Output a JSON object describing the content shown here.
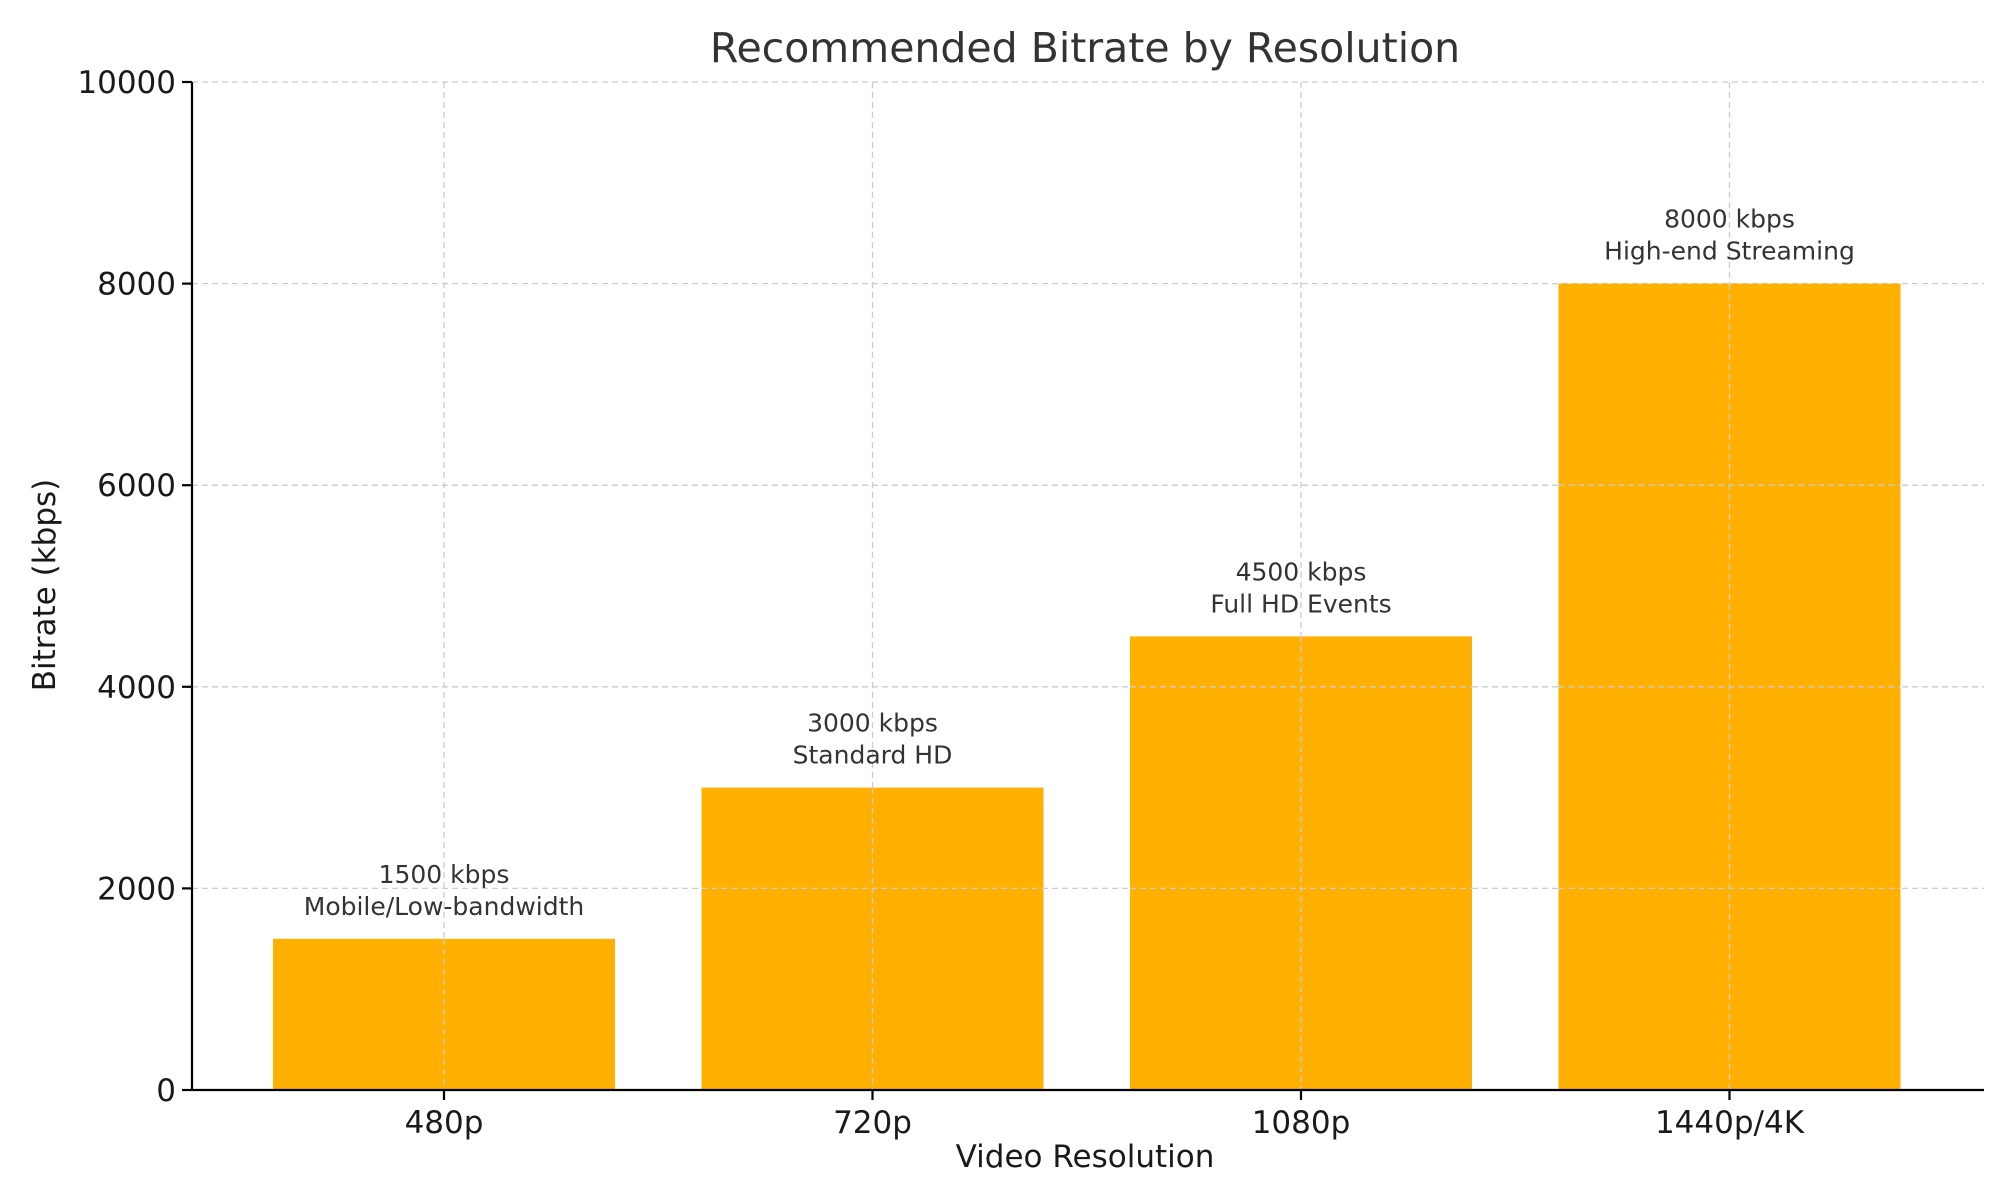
{
  "chart_data": {
    "type": "bar",
    "title": "Recommended Bitrate by Resolution",
    "xlabel": "Video Resolution",
    "ylabel": "Bitrate (kbps)",
    "categories": [
      "480p",
      "720p",
      "1080p",
      "1440p/4K"
    ],
    "values": [
      1500,
      3000,
      4500,
      8000
    ],
    "data_labels": [
      [
        "1500 kbps",
        "Mobile/Low-bandwidth"
      ],
      [
        "3000 kbps",
        "Standard HD"
      ],
      [
        "4500 kbps",
        "Full HD Events"
      ],
      [
        "8000 kbps",
        "High-end Streaming"
      ]
    ],
    "ylim": [
      0,
      10000
    ],
    "yticks": [
      0,
      2000,
      4000,
      6000,
      8000,
      10000
    ],
    "grid": true,
    "bar_color": "#ffb000"
  }
}
